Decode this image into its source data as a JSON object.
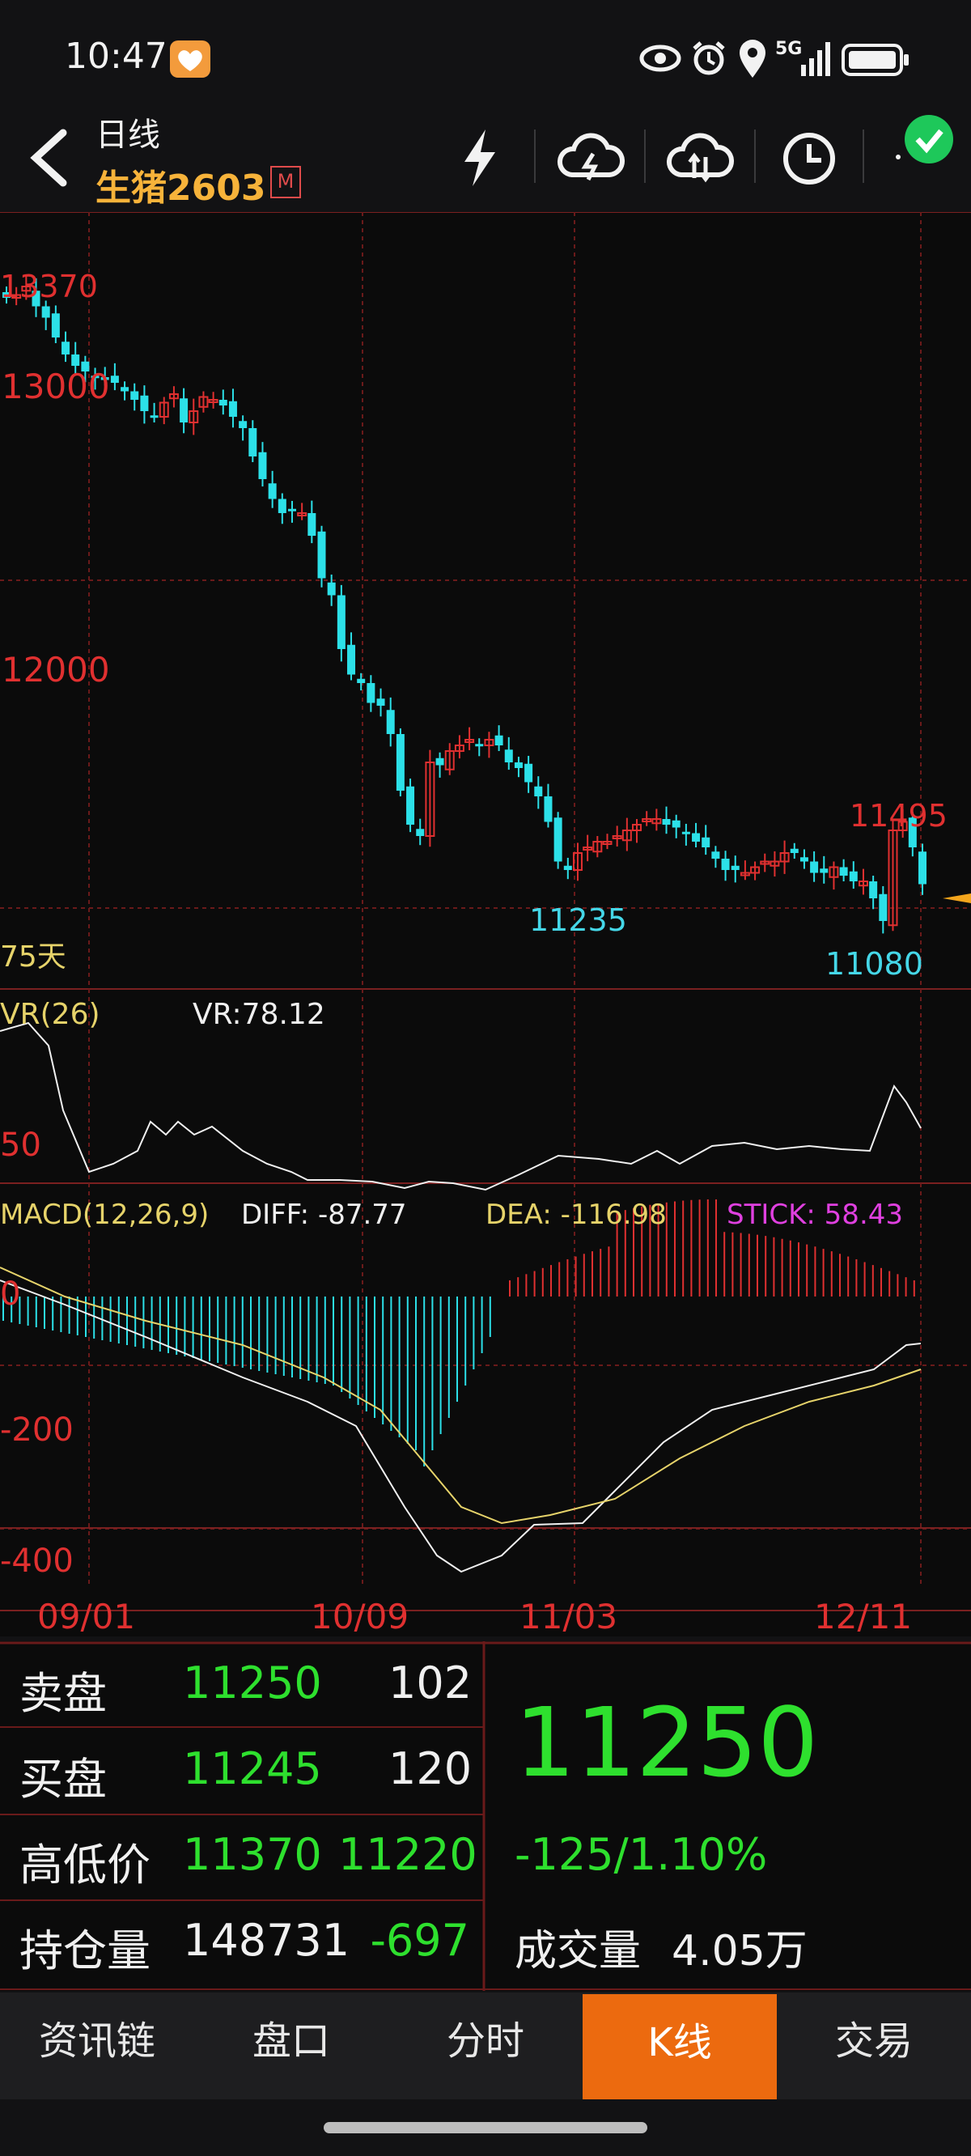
{
  "status_bar": {
    "time": "10:47",
    "network": "5G",
    "icons": [
      "eye-icon",
      "alarm-icon",
      "location-icon",
      "signal-icon",
      "battery-icon"
    ]
  },
  "header": {
    "title": "日线",
    "symbol": "生猪2603",
    "badge": "M",
    "toolbar_icons": [
      "lightning-icon",
      "cloud-upload-icon",
      "cloud-sync-icon",
      "clock-icon",
      "check-icon"
    ]
  },
  "chart": {
    "price_labels": [
      "13370",
      "13000",
      "12000"
    ],
    "annotations": [
      "11235",
      "11080",
      "11495"
    ],
    "ma_label": "75天",
    "vr": {
      "title": "VR(26)",
      "value": "VR:78.12",
      "axis_label": "50"
    },
    "macd": {
      "title": "MACD(12,26,9)",
      "diff": "DIFF: -87.77",
      "dea": "DEA: -116.98",
      "stick": "STICK: 58.43",
      "axis_labels": [
        "0",
        "-200",
        "-400"
      ]
    },
    "x_labels": [
      "09/01",
      "10/09",
      "11/03",
      "12/11"
    ],
    "colors": {
      "up": "#e03030",
      "down": "#2ce0e8",
      "grid": "#6a1a1a",
      "dea": "#e6d36a"
    }
  },
  "chart_data": {
    "type": "candlestick",
    "x_ticks": [
      "09/01",
      "10/09",
      "11/03",
      "12/11"
    ],
    "price_axis": [
      13000,
      12000
    ],
    "highest_visible": 13370,
    "low_annotations": [
      11235,
      11080
    ],
    "high_annotation": 11495,
    "closes": [
      13320,
      13330,
      13360,
      13290,
      13250,
      13180,
      13120,
      13080,
      13060,
      13040,
      13030,
      13020,
      12990,
      12960,
      12920,
      12900,
      12950,
      12980,
      12880,
      12920,
      12970,
      12960,
      12940,
      12900,
      12860,
      12760,
      12680,
      12610,
      12560,
      12570,
      12560,
      12480,
      12330,
      12270,
      12080,
      11990,
      11960,
      11890,
      11880,
      11780,
      11580,
      11460,
      11420,
      11680,
      11670,
      11720,
      11740,
      11760,
      11740,
      11760,
      11740,
      11680,
      11660,
      11610,
      11560,
      11470,
      11330,
      11300,
      11360,
      11380,
      11400,
      11400,
      11420,
      11440,
      11460,
      11480,
      11480,
      11460,
      11450,
      11430,
      11400,
      11380,
      11340,
      11300,
      11300,
      11290,
      11310,
      11330,
      11330,
      11360,
      11360,
      11330,
      11290,
      11290,
      11310,
      11280,
      11260,
      11260,
      11200,
      11120,
      11440,
      11470,
      11380,
      11250
    ],
    "vr": {
      "value": 78.12
    },
    "macd": {
      "diff": -87.77,
      "dea": -116.98,
      "stick": 58.43
    }
  },
  "quote": {
    "rows": [
      {
        "label": "卖盘",
        "v1": "11250",
        "v2": "102"
      },
      {
        "label": "买盘",
        "v1": "11245",
        "v2": "120"
      },
      {
        "label": "高低价",
        "v1": "11370",
        "v2": "11220"
      },
      {
        "label": "持仓量",
        "v1": "148731",
        "v2": "-697"
      }
    ],
    "last_price": "11250",
    "change": "-125/1.10%",
    "volume_label": "成交量",
    "volume": "4.05万"
  },
  "tabs": [
    "资讯链",
    "盘口",
    "分时",
    "K线",
    "交易"
  ]
}
